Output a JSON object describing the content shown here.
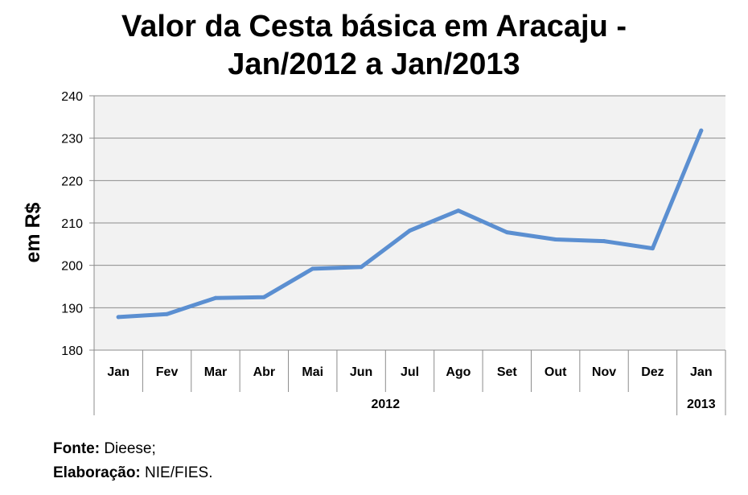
{
  "chart_data": {
    "type": "line",
    "title": [
      "Valor da Cesta básica em Aracaju -",
      "Jan/2012 a Jan/2013"
    ],
    "ylabel": "em R$",
    "ylim": [
      180,
      240
    ],
    "yticks": [
      180,
      190,
      200,
      210,
      220,
      230,
      240
    ],
    "grid": true,
    "categories": [
      "Jan",
      "Fev",
      "Mar",
      "Abr",
      "Mai",
      "Jun",
      "Jul",
      "Ago",
      "Set",
      "Out",
      "Nov",
      "Dez",
      "Jan"
    ],
    "groups": [
      {
        "label": "2012",
        "count": 12
      },
      {
        "label": "2013",
        "count": 1
      }
    ],
    "series": [
      {
        "values": [
          187.8,
          188.5,
          192.3,
          192.5,
          199.2,
          199.6,
          208.2,
          212.9,
          207.8,
          206.1,
          205.7,
          204.0,
          231.8
        ]
      }
    ],
    "colors": {
      "line": "#5b8fd1",
      "plot_bg": "#f2f2f2",
      "grid": "#8c8c8c"
    }
  },
  "footer": {
    "source_label": "Fonte:",
    "source_value": " Dieese;",
    "credit_label": "Elaboração:",
    "credit_value": "  NIE/FIES."
  }
}
